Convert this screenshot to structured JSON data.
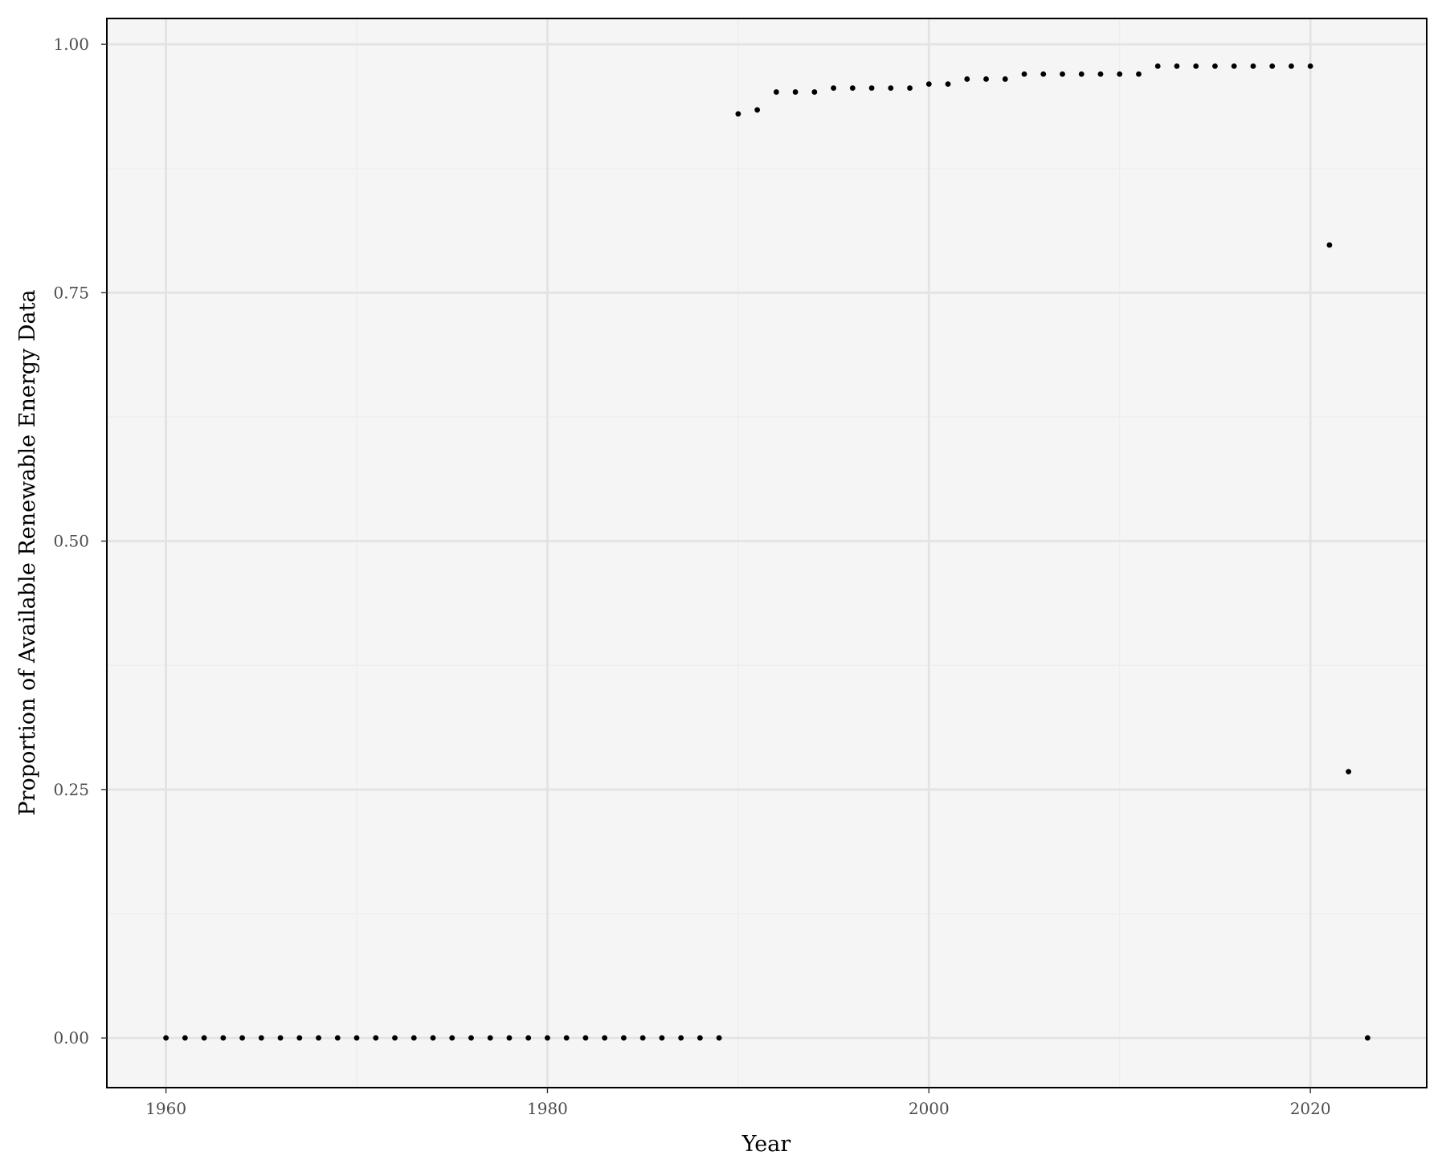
{
  "chart_data": {
    "type": "scatter",
    "title": "",
    "xlabel": "Year",
    "ylabel": "Proportion of Available Renewable Energy Data",
    "xlim": [
      1956.9,
      2026.1
    ],
    "ylim": [
      -0.05,
      1.026
    ],
    "x_ticks": [
      1960,
      1980,
      2000,
      2020
    ],
    "x_tick_labels": [
      "1960",
      "1980",
      "2000",
      "2020"
    ],
    "y_ticks": [
      0,
      0.25,
      0.5,
      0.75,
      1.0
    ],
    "y_tick_labels": [
      "0.00",
      "0.25",
      "0.50",
      "0.75",
      "1.00"
    ],
    "grid": true,
    "legend": "none",
    "colors": {
      "panel_background": "#f5f5f5",
      "grid_major": "#e3e3e3",
      "grid_minor": "#eeeeee",
      "point": "#000000",
      "border": "#000000"
    },
    "points": [
      {
        "x": 1960,
        "y": 0
      },
      {
        "x": 1961,
        "y": 0
      },
      {
        "x": 1962,
        "y": 0
      },
      {
        "x": 1963,
        "y": 0
      },
      {
        "x": 1964,
        "y": 0
      },
      {
        "x": 1965,
        "y": 0
      },
      {
        "x": 1966,
        "y": 0
      },
      {
        "x": 1967,
        "y": 0
      },
      {
        "x": 1968,
        "y": 0
      },
      {
        "x": 1969,
        "y": 0
      },
      {
        "x": 1970,
        "y": 0
      },
      {
        "x": 1971,
        "y": 0
      },
      {
        "x": 1972,
        "y": 0
      },
      {
        "x": 1973,
        "y": 0
      },
      {
        "x": 1974,
        "y": 0
      },
      {
        "x": 1975,
        "y": 0
      },
      {
        "x": 1976,
        "y": 0
      },
      {
        "x": 1977,
        "y": 0
      },
      {
        "x": 1978,
        "y": 0
      },
      {
        "x": 1979,
        "y": 0
      },
      {
        "x": 1980,
        "y": 0
      },
      {
        "x": 1981,
        "y": 0
      },
      {
        "x": 1982,
        "y": 0
      },
      {
        "x": 1983,
        "y": 0
      },
      {
        "x": 1984,
        "y": 0
      },
      {
        "x": 1985,
        "y": 0
      },
      {
        "x": 1986,
        "y": 0
      },
      {
        "x": 1987,
        "y": 0
      },
      {
        "x": 1988,
        "y": 0
      },
      {
        "x": 1989,
        "y": 0
      },
      {
        "x": 1990,
        "y": 0.93
      },
      {
        "x": 1991,
        "y": 0.934
      },
      {
        "x": 1992,
        "y": 0.952
      },
      {
        "x": 1993,
        "y": 0.952
      },
      {
        "x": 1994,
        "y": 0.952
      },
      {
        "x": 1995,
        "y": 0.956
      },
      {
        "x": 1996,
        "y": 0.956
      },
      {
        "x": 1997,
        "y": 0.956
      },
      {
        "x": 1998,
        "y": 0.956
      },
      {
        "x": 1999,
        "y": 0.956
      },
      {
        "x": 2000,
        "y": 0.96
      },
      {
        "x": 2001,
        "y": 0.96
      },
      {
        "x": 2002,
        "y": 0.965
      },
      {
        "x": 2003,
        "y": 0.965
      },
      {
        "x": 2004,
        "y": 0.965
      },
      {
        "x": 2005,
        "y": 0.97
      },
      {
        "x": 2006,
        "y": 0.97
      },
      {
        "x": 2007,
        "y": 0.97
      },
      {
        "x": 2008,
        "y": 0.97
      },
      {
        "x": 2009,
        "y": 0.97
      },
      {
        "x": 2010,
        "y": 0.97
      },
      {
        "x": 2011,
        "y": 0.97
      },
      {
        "x": 2012,
        "y": 0.978
      },
      {
        "x": 2013,
        "y": 0.978
      },
      {
        "x": 2014,
        "y": 0.978
      },
      {
        "x": 2015,
        "y": 0.978
      },
      {
        "x": 2016,
        "y": 0.978
      },
      {
        "x": 2017,
        "y": 0.978
      },
      {
        "x": 2018,
        "y": 0.978
      },
      {
        "x": 2019,
        "y": 0.978
      },
      {
        "x": 2020,
        "y": 0.978
      },
      {
        "x": 2021,
        "y": 0.798
      },
      {
        "x": 2022,
        "y": 0.268
      },
      {
        "x": 2023,
        "y": 0
      }
    ]
  }
}
